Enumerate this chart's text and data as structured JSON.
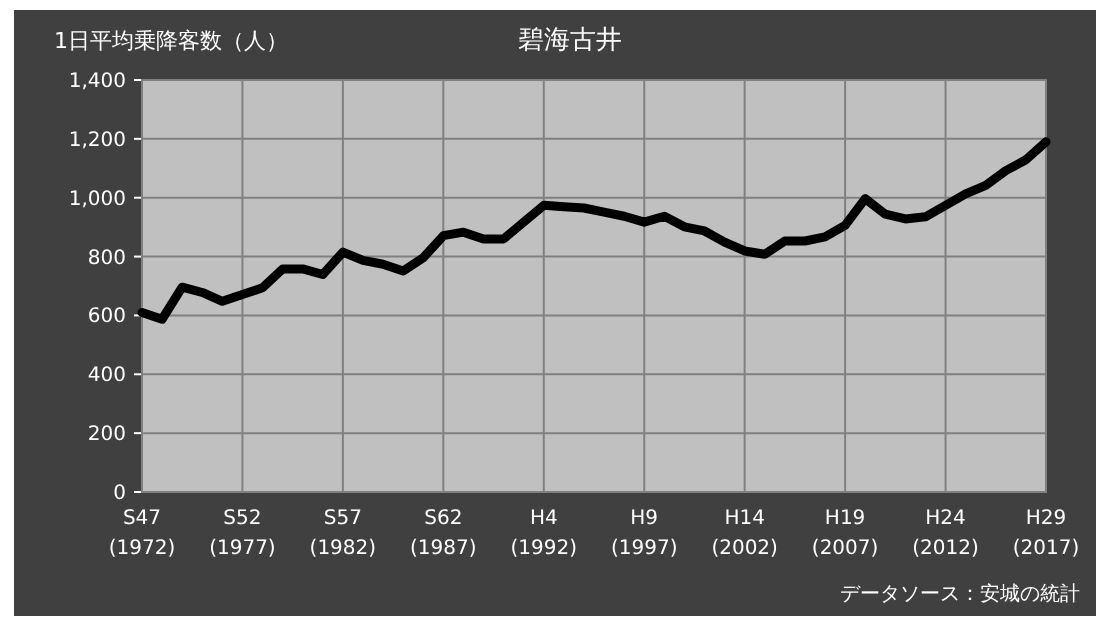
{
  "chart_data": {
    "type": "line",
    "title": "碧海古井",
    "ylabel": "1日平均乗降客数（人）",
    "annotations": [
      "データソース：安城の統計"
    ],
    "categories": [
      "S47\n(1972)",
      null,
      null,
      null,
      null,
      "S52\n(1977)",
      null,
      null,
      null,
      null,
      "S57\n(1982)",
      null,
      null,
      null,
      null,
      "S62\n(1987)",
      null,
      null,
      null,
      null,
      "H4\n(1992)",
      null,
      null,
      null,
      null,
      "H9\n(1997)",
      null,
      null,
      null,
      null,
      "H14\n(2002)",
      null,
      null,
      null,
      null,
      "H19\n(2007)",
      null,
      null,
      null,
      null,
      "H24\n(2012)",
      null,
      null,
      null,
      null,
      "H29\n(2017)"
    ],
    "series": [
      {
        "color": "#000000",
        "values": [
          610,
          587,
          696,
          678,
          648,
          671,
          694,
          758,
          758,
          739,
          815,
          787,
          774,
          751,
          796,
          871,
          883,
          860,
          860,
          917,
          974,
          969,
          965,
          951,
          937,
          917,
          937,
          901,
          887,
          849,
          819,
          808,
          853,
          853,
          867,
          906,
          997,
          944,
          928,
          935,
          974,
          1013,
          1042,
          1092,
          1129,
          1190
        ]
      }
    ],
    "ylim": [
      0,
      1400
    ],
    "yticks": [
      0,
      200,
      400,
      600,
      800,
      {
        "value": 1000,
        "label": "1,000"
      },
      {
        "value": 1200,
        "label": "1,200"
      },
      {
        "value": 1400,
        "label": "1,400"
      }
    ],
    "grid": true,
    "marker": "none",
    "line_style": "solid"
  }
}
